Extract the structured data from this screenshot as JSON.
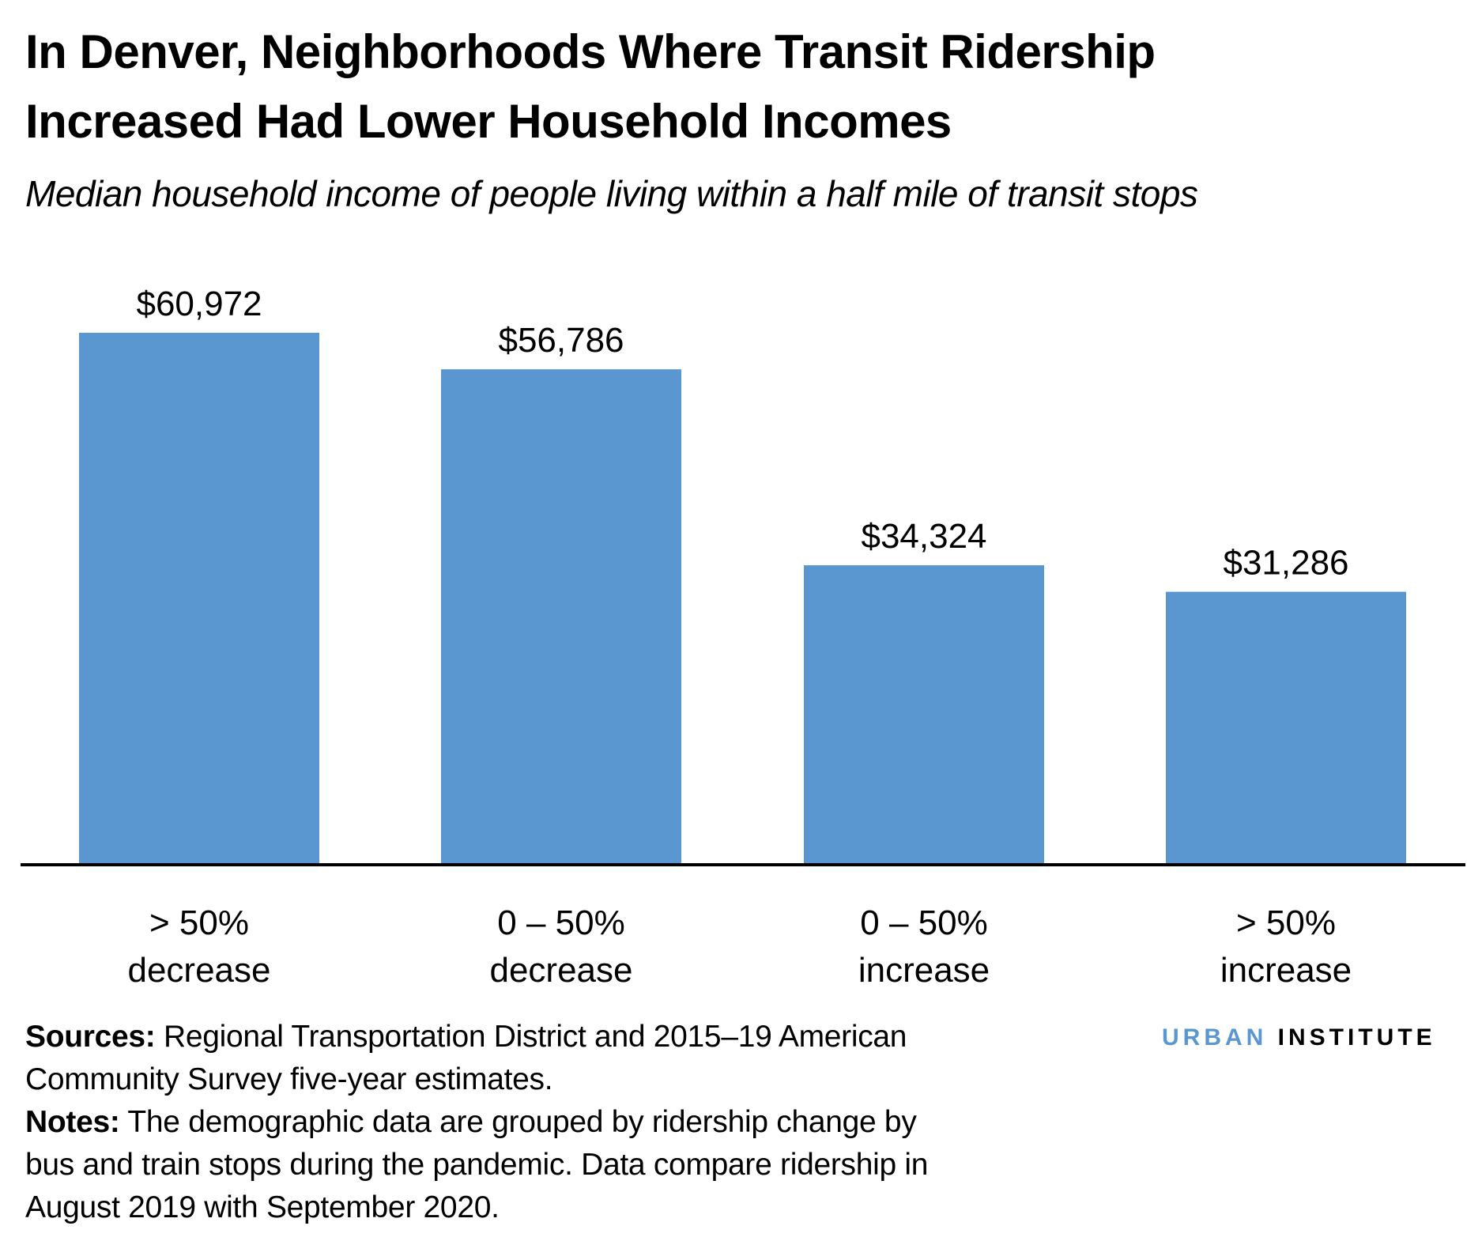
{
  "title_lines": [
    "In Denver, Neighborhoods Where Transit Ridership",
    "Increased Had Lower Household Incomes"
  ],
  "subtitle": "Median household income of people living within a half mile of transit stops",
  "chart_data": {
    "type": "bar",
    "title": "In Denver, Neighborhoods Where Transit Ridership Increased Had Lower Household Incomes",
    "subtitle": "Median household income of people living within a half mile of transit stops",
    "categories": [
      [
        "> 50%",
        "decrease"
      ],
      [
        "0 – 50%",
        "decrease"
      ],
      [
        "0 – 50%",
        "increase"
      ],
      [
        "> 50%",
        "increase"
      ]
    ],
    "values": [
      60972,
      56786,
      34324,
      31286
    ],
    "data_labels": [
      "$60,972",
      "$56,786",
      "$34,324",
      "$31,286"
    ],
    "ylim": [
      0,
      60972
    ],
    "grid": false,
    "bar_color": "#5a96d0"
  },
  "footer": {
    "sources_label": "Sources:",
    "sources_text": " Regional Transportation District and 2015–19 American Community Survey five-year estimates.",
    "notes_label": "Notes:",
    "notes_text": " The demographic data are grouped by ridership change by bus and train stops during the pandemic. Data compare ridership in August 2019 with September 2020."
  },
  "logo": {
    "part1": "URBAN",
    "part2": "INSTITUTE"
  }
}
